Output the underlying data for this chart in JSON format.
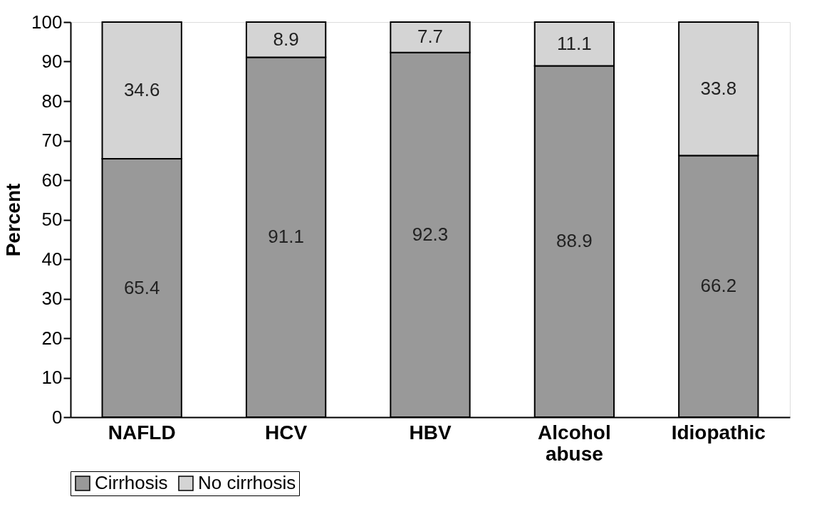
{
  "chart_data": {
    "type": "bar",
    "ylabel": "Percent",
    "categories": [
      "NAFLD",
      "HCV",
      "HBV",
      "Alcohol abuse",
      "Idiopathic"
    ],
    "series": [
      {
        "name": "Cirrhosis",
        "color": "#999999",
        "values": [
          65.4,
          91.1,
          92.3,
          88.9,
          66.2
        ]
      },
      {
        "name": "No cirrhosis",
        "color": "#d4d4d4",
        "values": [
          34.6,
          8.9,
          7.7,
          11.1,
          33.8
        ]
      }
    ],
    "stacked": true,
    "data_labels": true,
    "ylim": [
      0,
      100
    ],
    "yticks": [
      0,
      10,
      20,
      30,
      40,
      50,
      60,
      70,
      80,
      90,
      100
    ],
    "grid": false,
    "legend": "bottom"
  }
}
